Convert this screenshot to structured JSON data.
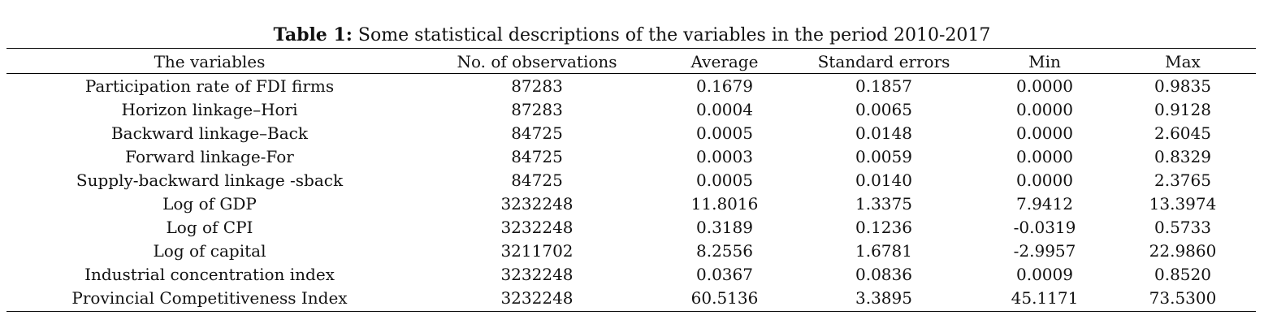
{
  "caption": {
    "label": "Table 1:",
    "text": "Some statistical descriptions of the variables in the period 2010-2017"
  },
  "table": {
    "headers": [
      "The variables",
      "No. of observations",
      "Average",
      "Standard errors",
      "Min",
      "Max"
    ],
    "rows": [
      [
        "Participation rate of FDI firms",
        "87283",
        "0.1679",
        "0.1857",
        "0.0000",
        "0.9835"
      ],
      [
        "Horizon linkage–Hori",
        "87283",
        "0.0004",
        "0.0065",
        "0.0000",
        "0.9128"
      ],
      [
        "Backward linkage–Back",
        "84725",
        "0.0005",
        "0.0148",
        "0.0000",
        "2.6045"
      ],
      [
        "Forward linkage-For",
        "84725",
        "0.0003",
        "0.0059",
        "0.0000",
        "0.8329"
      ],
      [
        "Supply-backward linkage -sback",
        "84725",
        "0.0005",
        "0.0140",
        "0.0000",
        "2.3765"
      ],
      [
        "Log of GDP",
        "3232248",
        "11.8016",
        "1.3375",
        "7.9412",
        "13.3974"
      ],
      [
        "Log of CPI",
        "3232248",
        "0.3189",
        "0.1236",
        "-0.0319",
        "0.5733"
      ],
      [
        "Log of capital",
        "3211702",
        "8.2556",
        "1.6781",
        "-2.9957",
        "22.9860"
      ],
      [
        "Industrial concentration index",
        "3232248",
        "0.0367",
        "0.0836",
        "0.0009",
        "0.8520"
      ],
      [
        "Provincial Competitiveness Index",
        "3232248",
        "60.5136",
        "3.3895",
        "45.1171",
        "73.5300"
      ]
    ]
  }
}
